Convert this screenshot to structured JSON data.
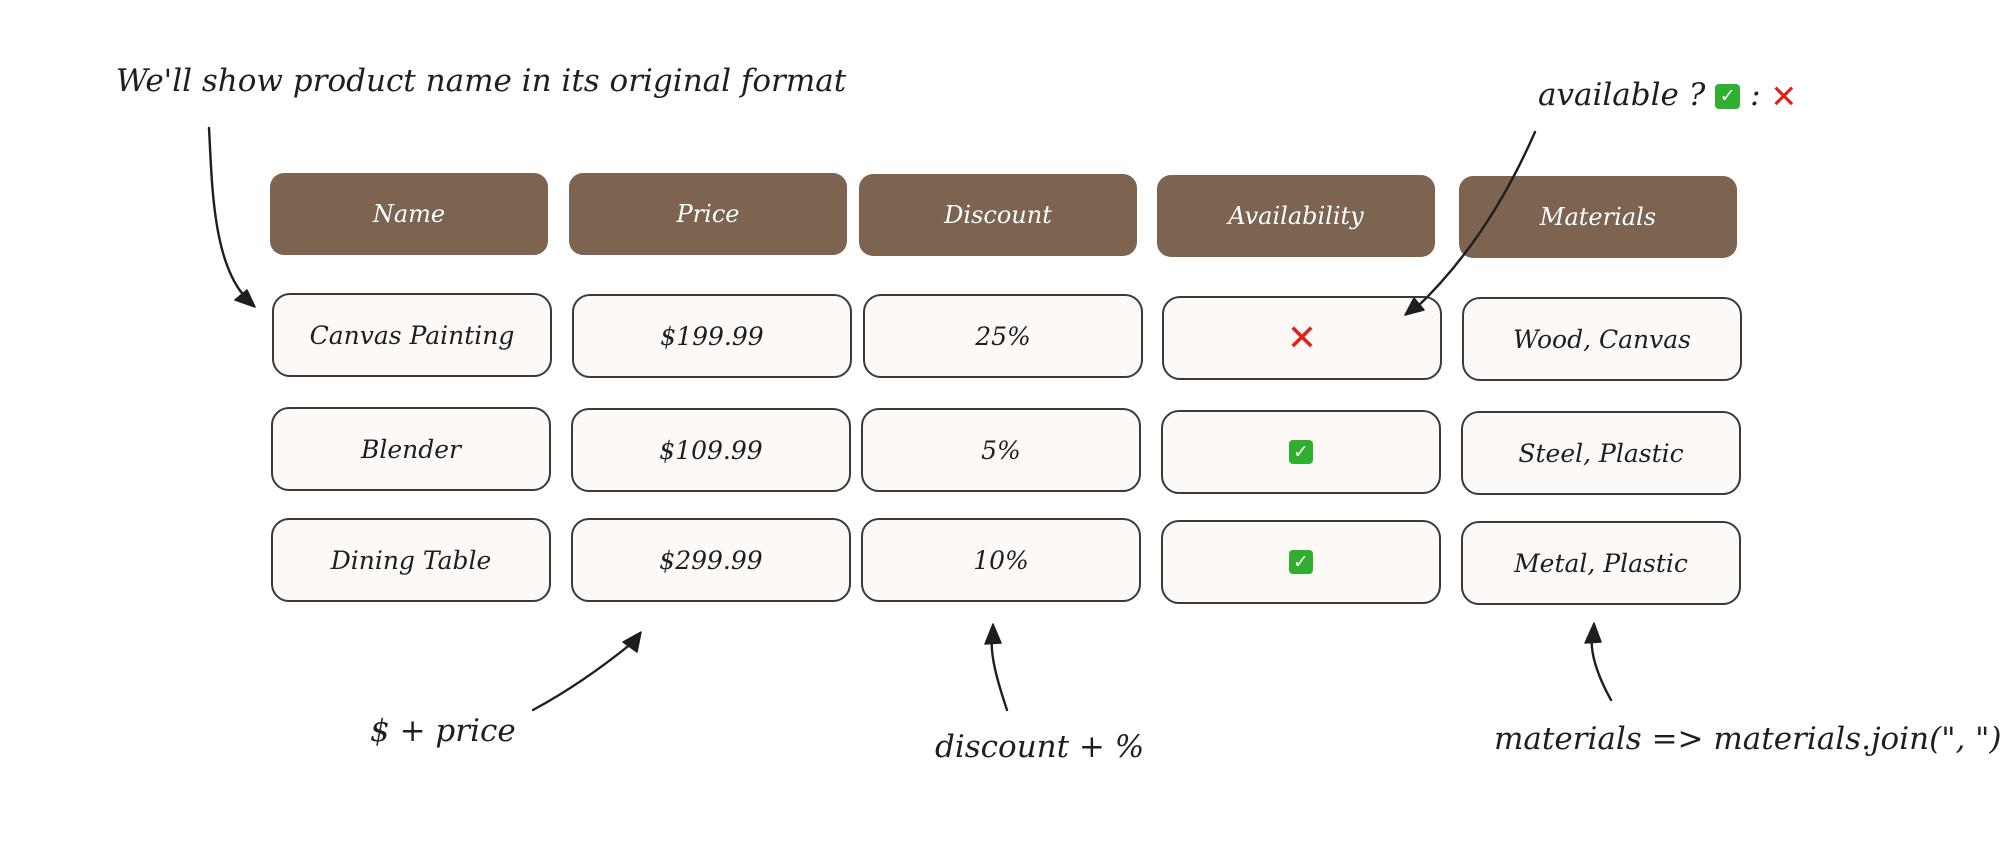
{
  "annotations": {
    "name_note": "We'll show product name in its original format",
    "availability_note_prefix": "available ?",
    "availability_note_separator": ":",
    "price_note": "$ + price",
    "discount_note": "discount + %",
    "materials_note": "materials => materials.join(\", \")"
  },
  "table": {
    "headers": [
      "Name",
      "Price",
      "Discount",
      "Availability",
      "Materials"
    ],
    "rows": [
      {
        "name": "Canvas Painting",
        "price": "$199.99",
        "discount": "25%",
        "available": false,
        "materials": "Wood, Canvas"
      },
      {
        "name": "Blender",
        "price": "$109.99",
        "discount": "5%",
        "available": true,
        "materials": "Steel, Plastic"
      },
      {
        "name": "Dining Table",
        "price": "$299.99",
        "discount": "10%",
        "available": true,
        "materials": "Metal, Plastic"
      }
    ]
  },
  "icons": {
    "available": "check-mark-icon",
    "unavailable": "cross-mark-icon"
  },
  "colors": {
    "header_fill": "#7c6450",
    "header_text": "#ffffff",
    "cell_fill": "#fdf9f6",
    "cell_border": "#3a3a3a",
    "check_green": "#2fae2f",
    "cross_red": "#e0201b"
  }
}
